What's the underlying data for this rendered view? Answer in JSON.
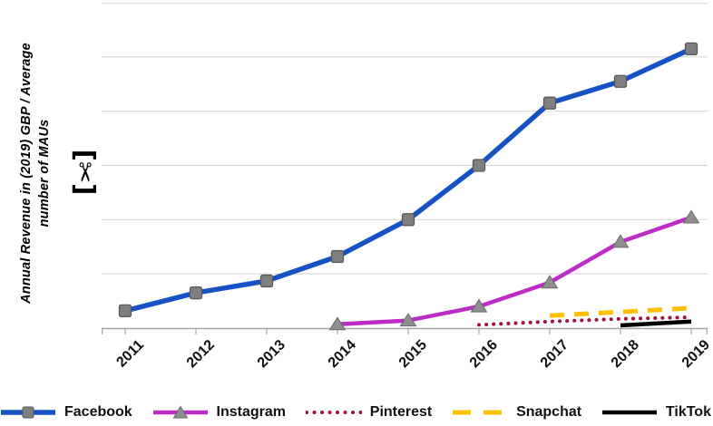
{
  "y_axis": {
    "title_line1": "Annual Revenue in (2019) GBP / Average",
    "title_line2": "number of MAUs",
    "break_symbol": "[✂]"
  },
  "colors": {
    "facebook": "#1752C4",
    "instagram": "#BC2DC6",
    "pinterest": "#A0143E",
    "snapchat": "#FFC000",
    "tiktok": "#000000",
    "gridline": "#D9D9D9",
    "axis": "#A6A6A6",
    "marker_fill": "#7F7F7F",
    "marker_stroke": "#595959"
  },
  "chart_data": {
    "type": "line",
    "title": "",
    "xlabel": "",
    "ylabel": "Annual Revenue in (2019) GBP / Average number of MAUs",
    "ylim": [
      0,
      6
    ],
    "y_tick_labels": [],
    "gridlines": "horizontal",
    "legend_position": "bottom",
    "axis_break": "scissors symbol on y-axis (values hidden)",
    "categories": [
      "2011",
      "2012",
      "2013",
      "2014",
      "2015",
      "2016",
      "2017",
      "2018",
      "2019"
    ],
    "series": [
      {
        "name": "Facebook",
        "color": "#1752C4",
        "style": "solid",
        "width": 5.5,
        "marker": "square",
        "marker_fill": "#7F7F7F",
        "marker_stroke": "#595959",
        "values": [
          0.32,
          0.65,
          0.87,
          1.32,
          2.0,
          3.0,
          4.15,
          4.55,
          5.15
        ]
      },
      {
        "name": "Instagram",
        "color": "#BC2DC6",
        "style": "solid",
        "width": 4.5,
        "marker": "triangle",
        "marker_fill": "#8F8F8F",
        "marker_stroke": "#6B6B6B",
        "values": [
          null,
          null,
          null,
          0.07,
          0.14,
          0.4,
          0.84,
          1.59,
          2.04
        ]
      },
      {
        "name": "Pinterest",
        "color": "#A0143E",
        "style": "dotted",
        "width": 4,
        "marker": "none",
        "values": [
          null,
          null,
          null,
          null,
          null,
          0.06,
          0.12,
          0.17,
          0.2
        ]
      },
      {
        "name": "Snapchat",
        "color": "#FFC000",
        "style": "dashed",
        "width": 5,
        "marker": "none",
        "values": [
          null,
          null,
          null,
          null,
          null,
          null,
          0.23,
          0.3,
          0.37
        ]
      },
      {
        "name": "TikTok",
        "color": "#000000",
        "style": "solid",
        "width": 4.5,
        "marker": "none",
        "values": [
          null,
          null,
          null,
          null,
          null,
          null,
          null,
          0.05,
          0.12
        ]
      }
    ]
  }
}
